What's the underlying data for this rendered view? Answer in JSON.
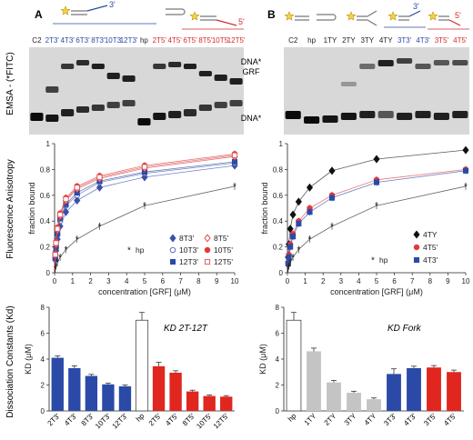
{
  "panel_labels": [
    "A",
    "B"
  ],
  "row_labels": {
    "emsa": "EMSA - (*FITC)",
    "fa": "Fluorescence Anisotropy",
    "kd": "Dissociation Constants (Kd)"
  },
  "strand_labels": {
    "a3": "3'",
    "a5": "5'",
    "b3": "3'",
    "b5": "5'"
  },
  "gels": [
    {
      "lanes": [
        "C2",
        "2T3'",
        "4T3'",
        "6T3'",
        "8T3'",
        "10T3'",
        "12T3'",
        "hp",
        "2T5'",
        "4T5'",
        "6T5'",
        "8T5'",
        "10T5'",
        "12T5'"
      ],
      "lane_colors": [
        "#222222",
        "#2b4aa8",
        "#2b4aa8",
        "#2b4aa8",
        "#2b4aa8",
        "#2b4aa8",
        "#2b4aa8",
        "#222222",
        "#d42a2a",
        "#d42a2a",
        "#d42a2a",
        "#d42a2a",
        "#d42a2a",
        "#d42a2a"
      ],
      "band_labels": {
        "complex": "DNA*\nGRF",
        "free": "DNA*"
      }
    },
    {
      "lanes": [
        "C2",
        "hp",
        "1TY",
        "2TY",
        "3TY",
        "4TY",
        "3T3'",
        "4T3'",
        "3T5'",
        "4T5'"
      ],
      "lane_colors": [
        "#222222",
        "#222222",
        "#222222",
        "#222222",
        "#222222",
        "#222222",
        "#2b4aa8",
        "#2b4aa8",
        "#d42a2a",
        "#d42a2a"
      ]
    }
  ],
  "chart_data": [
    {
      "type": "scatter",
      "panel": "A",
      "xlabel": "concentration [GRF] (μM)",
      "ylabel": "fraction bound",
      "xlim": [
        0,
        10
      ],
      "ylim": [
        0,
        1
      ],
      "xticks": [
        0,
        1,
        2,
        3,
        4,
        5,
        6,
        7,
        8,
        9,
        10
      ],
      "yticks": [
        0,
        0.2,
        0.4,
        0.6,
        0.8,
        1
      ],
      "x": [
        0.04,
        0.08,
        0.16,
        0.31,
        0.63,
        1.25,
        2.5,
        5,
        10
      ],
      "series": [
        {
          "name": "8T3'",
          "color": "#3a4fa8",
          "marker": "diamond-filled",
          "y": [
            0.1,
            0.17,
            0.26,
            0.36,
            0.47,
            0.56,
            0.66,
            0.74,
            0.83
          ]
        },
        {
          "name": "10T3'",
          "color": "#4a5fb0",
          "marker": "circle-open",
          "y": [
            0.12,
            0.2,
            0.3,
            0.4,
            0.52,
            0.6,
            0.7,
            0.77,
            0.85
          ]
        },
        {
          "name": "12T3'",
          "color": "#2b4aa8",
          "marker": "square-filled",
          "y": [
            0.12,
            0.2,
            0.3,
            0.42,
            0.53,
            0.62,
            0.71,
            0.78,
            0.86
          ]
        },
        {
          "name": "8T5'",
          "color": "#e03a3a",
          "marker": "diamond-open",
          "y": [
            0.14,
            0.22,
            0.33,
            0.44,
            0.56,
            0.65,
            0.73,
            0.81,
            0.9
          ]
        },
        {
          "name": "10T5'",
          "color": "#e03a3a",
          "marker": "circle-filled",
          "y": [
            0.15,
            0.24,
            0.35,
            0.46,
            0.58,
            0.67,
            0.75,
            0.83,
            0.92
          ]
        },
        {
          "name": "12T5'",
          "color": "#e05050",
          "marker": "square-open",
          "y": [
            0.14,
            0.23,
            0.34,
            0.45,
            0.57,
            0.66,
            0.74,
            0.82,
            0.91
          ]
        },
        {
          "name": "hp",
          "color": "#222222",
          "marker": "asterisk",
          "y": [
            0.03,
            0.05,
            0.08,
            0.12,
            0.18,
            0.26,
            0.36,
            0.52,
            0.67
          ]
        }
      ]
    },
    {
      "type": "scatter",
      "panel": "B",
      "xlabel": "concentration [GRF] (μM)",
      "ylabel": "fraction bound",
      "xlim": [
        0,
        10
      ],
      "ylim": [
        0,
        1
      ],
      "xticks": [
        0,
        1,
        2,
        3,
        4,
        5,
        6,
        7,
        8,
        9,
        10
      ],
      "yticks": [
        0,
        0.2,
        0.4,
        0.6,
        0.8,
        1
      ],
      "x": [
        0.04,
        0.08,
        0.16,
        0.31,
        0.63,
        1.25,
        2.5,
        5,
        10
      ],
      "series": [
        {
          "name": "4TY",
          "color": "#111111",
          "marker": "diamond-filled",
          "y": [
            0.12,
            0.22,
            0.34,
            0.45,
            0.55,
            0.66,
            0.79,
            0.88,
            0.95
          ]
        },
        {
          "name": "4T5'",
          "color": "#e03a3a",
          "marker": "circle-filled",
          "y": [
            0.08,
            0.14,
            0.22,
            0.3,
            0.4,
            0.5,
            0.6,
            0.72,
            0.8
          ]
        },
        {
          "name": "4T3'",
          "color": "#2b4aa8",
          "marker": "square-filled",
          "y": [
            0.07,
            0.12,
            0.2,
            0.28,
            0.38,
            0.47,
            0.58,
            0.7,
            0.79
          ]
        },
        {
          "name": "hp",
          "color": "#222222",
          "marker": "asterisk",
          "y": [
            0.03,
            0.05,
            0.08,
            0.12,
            0.18,
            0.26,
            0.36,
            0.52,
            0.67
          ]
        }
      ]
    },
    {
      "type": "bar",
      "panel": "A",
      "title": "KD 2T-12T",
      "ylabel": "KD (μM)",
      "ylim": [
        0,
        8
      ],
      "yticks": [
        0,
        2,
        4,
        6,
        8
      ],
      "categories": [
        "2T3'",
        "4T3'",
        "8T3'",
        "10T3'",
        "12T3'",
        "hp",
        "2T5'",
        "4T5'",
        "8T5'",
        "10T5'",
        "12T5'"
      ],
      "values": [
        4.1,
        3.3,
        2.7,
        2.05,
        1.9,
        7.0,
        3.45,
        2.95,
        1.5,
        1.15,
        1.1
      ],
      "errors": [
        0.15,
        0.18,
        0.12,
        0.1,
        0.1,
        0.6,
        0.3,
        0.15,
        0.1,
        0.08,
        0.08
      ],
      "colors": [
        "#2b4aa8",
        "#2b4aa8",
        "#2b4aa8",
        "#2b4aa8",
        "#2b4aa8",
        "#ffffff",
        "#e0261e",
        "#e0261e",
        "#e0261e",
        "#e0261e",
        "#e0261e"
      ]
    },
    {
      "type": "bar",
      "panel": "B",
      "title": "KD Fork",
      "ylabel": "KD (μM)",
      "ylim": [
        0,
        8
      ],
      "yticks": [
        0,
        2,
        4,
        6,
        8
      ],
      "categories": [
        "hp",
        "1TY",
        "2TY",
        "3TY",
        "4TY",
        "3T3'",
        "4T3'",
        "3T5'",
        "4T5'"
      ],
      "values": [
        7.0,
        4.6,
        2.2,
        1.4,
        0.9,
        2.85,
        3.3,
        3.35,
        3.0
      ],
      "errors": [
        0.6,
        0.25,
        0.15,
        0.12,
        0.1,
        0.4,
        0.15,
        0.15,
        0.15
      ],
      "colors": [
        "#ffffff",
        "#c4c4c4",
        "#c4c4c4",
        "#c4c4c4",
        "#c4c4c4",
        "#2b4aa8",
        "#2b4aa8",
        "#e0261e",
        "#e0261e"
      ]
    }
  ]
}
